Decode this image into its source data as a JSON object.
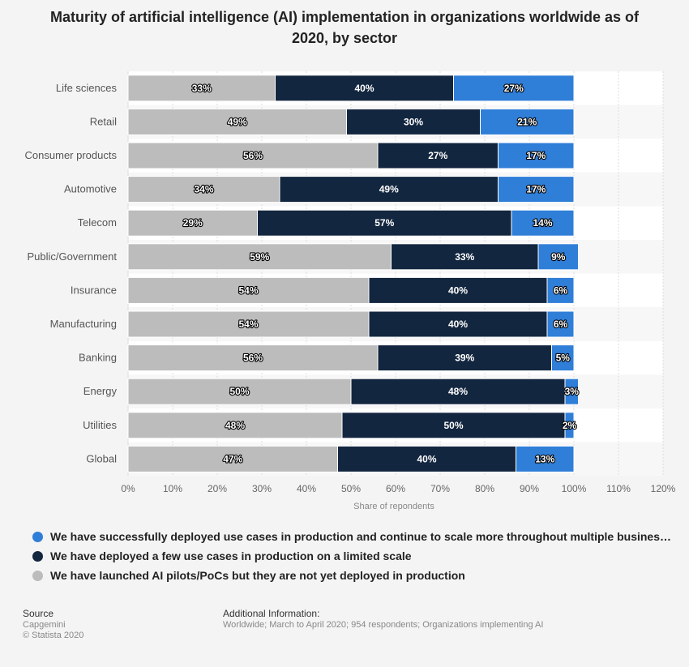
{
  "chart_data": {
    "type": "bar",
    "orientation": "horizontal",
    "stacked": true,
    "title": "Maturity of artificial intelligence (AI) implementation in organizations worldwide as of 2020, by sector",
    "categories": [
      "Life sciences",
      "Retail",
      "Consumer products",
      "Automotive",
      "Telecom",
      "Public/Government",
      "Insurance",
      "Manufacturing",
      "Banking",
      "Energy",
      "Utilities",
      "Global"
    ],
    "series": [
      {
        "name": "We have launched AI pilots/PoCs but they are not yet deployed in production",
        "color": "#bcbcbc",
        "values": [
          33,
          49,
          56,
          34,
          29,
          59,
          54,
          54,
          56,
          50,
          48,
          47
        ]
      },
      {
        "name": "We have deployed a few use cases in production on a limited scale",
        "color": "#13263f",
        "values": [
          40,
          30,
          27,
          49,
          57,
          33,
          40,
          40,
          39,
          48,
          50,
          40
        ]
      },
      {
        "name": "We have successfully deployed use cases in production and continue to scale more throughout multiple business t…",
        "color": "#2f7ed8",
        "values": [
          27,
          21,
          17,
          17,
          14,
          9,
          6,
          6,
          5,
          3,
          2,
          13
        ]
      }
    ],
    "xlabel": "Share of repondents",
    "xlim": [
      0,
      120
    ],
    "x_ticks": [
      "0%",
      "10%",
      "20%",
      "30%",
      "40%",
      "50%",
      "60%",
      "70%",
      "80%",
      "90%",
      "100%",
      "110%",
      "120%"
    ],
    "grid": true,
    "legend_position": "bottom",
    "legend_order": [
      2,
      1,
      0
    ]
  },
  "footer": {
    "source_heading": "Source",
    "source_name": "Capgemini",
    "copyright": "© Statista 2020",
    "info_heading": "Additional Information:",
    "info_text": "Worldwide; March to April 2020; 954 respondents; Organizations implementing AI"
  }
}
